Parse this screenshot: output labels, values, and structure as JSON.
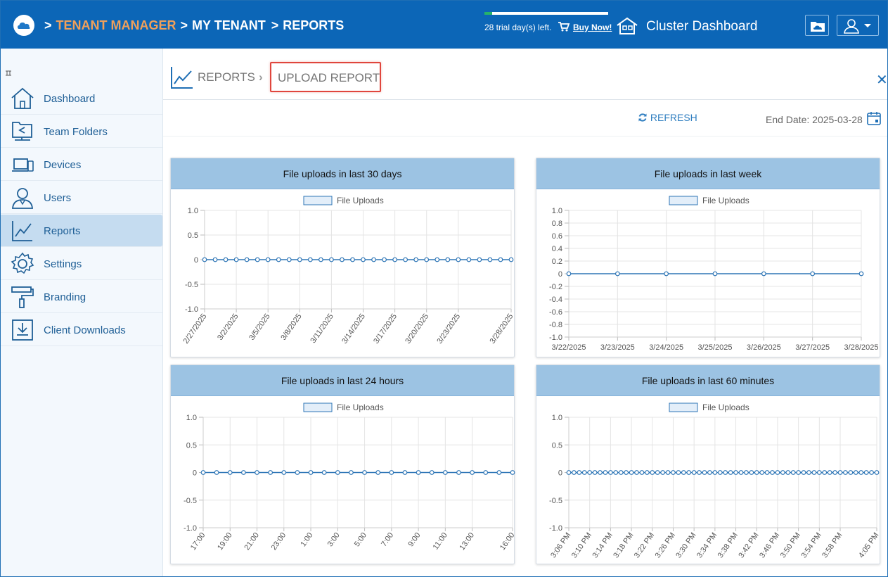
{
  "topbar": {
    "breadcrumb": [
      ">",
      "TENANT MANAGER",
      ">",
      "MY TENANT",
      ">",
      "REPORTS"
    ],
    "trial_progress": 0.06,
    "trial_text": "28 trial day(s) left.",
    "buy_now": "Buy Now!",
    "cluster_dashboard": "Cluster Dashboard",
    "icons": [
      "cloud-logo-icon",
      "cart-icon",
      "house-icon",
      "cloud-folder-icon",
      "user-icon",
      "caret-down-icon"
    ]
  },
  "sidebar": {
    "collapse_icon": "collapse-icon",
    "items": [
      {
        "label": "Dashboard",
        "icon": "home-icon"
      },
      {
        "label": "Team Folders",
        "icon": "share-folder-icon"
      },
      {
        "label": "Devices",
        "icon": "devices-icon"
      },
      {
        "label": "Users",
        "icon": "user-icon"
      },
      {
        "label": "Reports",
        "icon": "chart-icon",
        "active": true
      },
      {
        "label": "Settings",
        "icon": "gear-icon"
      },
      {
        "label": "Branding",
        "icon": "paint-roller-icon"
      },
      {
        "label": "Client Downloads",
        "icon": "download-icon"
      }
    ]
  },
  "header": {
    "reports": "REPORTS",
    "upload_report": "UPLOAD REPORT",
    "refresh": "REFRESH",
    "end_date": "End Date: 2025-03-28"
  },
  "colors": {
    "accent": "#0c66b7",
    "tenant_manager": "#f0a05a",
    "panel_header": "#9cc3e3",
    "highlight": "#e0463d",
    "series": "#2f76b6"
  },
  "chart_data": [
    {
      "type": "line",
      "title": "File uploads in last 30 days",
      "legend": "File Uploads",
      "legend_position": "top",
      "grid": true,
      "ylim": [
        -1,
        1
      ],
      "yticks": [
        "1.0",
        "0.5",
        "0",
        "-0.5",
        "-1.0"
      ],
      "tick_labels": [
        "2/27/2025",
        "3/2/2025",
        "3/5/2025",
        "3/8/2025",
        "3/11/2025",
        "3/14/2025",
        "3/17/2025",
        "3/20/2025",
        "3/23/2025",
        "3/28/2025"
      ],
      "x": [
        "2/27/2025",
        "2/28/2025",
        "3/1/2025",
        "3/2/2025",
        "3/3/2025",
        "3/4/2025",
        "3/5/2025",
        "3/6/2025",
        "3/7/2025",
        "3/8/2025",
        "3/9/2025",
        "3/10/2025",
        "3/11/2025",
        "3/12/2025",
        "3/13/2025",
        "3/14/2025",
        "3/15/2025",
        "3/16/2025",
        "3/17/2025",
        "3/18/2025",
        "3/19/2025",
        "3/20/2025",
        "3/21/2025",
        "3/22/2025",
        "3/23/2025",
        "3/24/2025",
        "3/25/2025",
        "3/26/2025",
        "3/27/2025",
        "3/28/2025"
      ],
      "series": [
        {
          "name": "File Uploads",
          "values": [
            0,
            0,
            0,
            0,
            0,
            0,
            0,
            0,
            0,
            0,
            0,
            0,
            0,
            0,
            0,
            0,
            0,
            0,
            0,
            0,
            0,
            0,
            0,
            0,
            0,
            0,
            0,
            0,
            0,
            0
          ]
        }
      ]
    },
    {
      "type": "line",
      "title": "File uploads in last week",
      "legend": "File Uploads",
      "legend_position": "top",
      "grid": true,
      "ylim": [
        -1,
        1
      ],
      "yticks": [
        "1.0",
        "0.8",
        "0.6",
        "0.4",
        "0.2",
        "0",
        "-0.2",
        "-0.4",
        "-0.6",
        "-0.8",
        "-1.0"
      ],
      "tick_labels": [
        "3/22/2025",
        "3/23/2025",
        "3/24/2025",
        "3/25/2025",
        "3/26/2025",
        "3/27/2025",
        "3/28/2025"
      ],
      "x": [
        "3/22/2025",
        "3/23/2025",
        "3/24/2025",
        "3/25/2025",
        "3/26/2025",
        "3/27/2025",
        "3/28/2025"
      ],
      "series": [
        {
          "name": "File Uploads",
          "values": [
            0,
            0,
            0,
            0,
            0,
            0,
            0
          ]
        }
      ]
    },
    {
      "type": "line",
      "title": "File uploads in last 24 hours",
      "legend": "File Uploads",
      "legend_position": "top",
      "grid": true,
      "ylim": [
        -1,
        1
      ],
      "yticks": [
        "1.0",
        "0.5",
        "0",
        "-0.5",
        "-1.0"
      ],
      "tick_labels": [
        "17:00",
        "19:00",
        "21:00",
        "23:00",
        "1:00",
        "3:00",
        "5:00",
        "7:00",
        "9:00",
        "11:00",
        "13:00",
        "16:00"
      ],
      "x": [
        "17:00",
        "18:00",
        "19:00",
        "20:00",
        "21:00",
        "22:00",
        "23:00",
        "0:00",
        "1:00",
        "2:00",
        "3:00",
        "4:00",
        "5:00",
        "6:00",
        "7:00",
        "8:00",
        "9:00",
        "10:00",
        "11:00",
        "12:00",
        "13:00",
        "14:00",
        "15:00",
        "16:00"
      ],
      "series": [
        {
          "name": "File Uploads",
          "values": [
            0,
            0,
            0,
            0,
            0,
            0,
            0,
            0,
            0,
            0,
            0,
            0,
            0,
            0,
            0,
            0,
            0,
            0,
            0,
            0,
            0,
            0,
            0,
            0
          ]
        }
      ]
    },
    {
      "type": "line",
      "title": "File uploads in last 60 minutes",
      "legend": "File Uploads",
      "legend_position": "top",
      "grid": true,
      "ylim": [
        -1,
        1
      ],
      "yticks": [
        "1.0",
        "0.5",
        "0",
        "-0.5",
        "-1.0"
      ],
      "tick_labels": [
        "3:06 PM",
        "3:10 PM",
        "3:14 PM",
        "3:18 PM",
        "3:22 PM",
        "3:26 PM",
        "3:30 PM",
        "3:34 PM",
        "3:38 PM",
        "3:42 PM",
        "3:46 PM",
        "3:50 PM",
        "3:54 PM",
        "3:58 PM",
        "4:05 PM"
      ],
      "x": [
        "3:06 PM",
        "3:07 PM",
        "3:08 PM",
        "3:09 PM",
        "3:10 PM",
        "3:11 PM",
        "3:12 PM",
        "3:13 PM",
        "3:14 PM",
        "3:15 PM",
        "3:16 PM",
        "3:17 PM",
        "3:18 PM",
        "3:19 PM",
        "3:20 PM",
        "3:21 PM",
        "3:22 PM",
        "3:23 PM",
        "3:24 PM",
        "3:25 PM",
        "3:26 PM",
        "3:27 PM",
        "3:28 PM",
        "3:29 PM",
        "3:30 PM",
        "3:31 PM",
        "3:32 PM",
        "3:33 PM",
        "3:34 PM",
        "3:35 PM",
        "3:36 PM",
        "3:37 PM",
        "3:38 PM",
        "3:39 PM",
        "3:40 PM",
        "3:41 PM",
        "3:42 PM",
        "3:43 PM",
        "3:44 PM",
        "3:45 PM",
        "3:46 PM",
        "3:47 PM",
        "3:48 PM",
        "3:49 PM",
        "3:50 PM",
        "3:51 PM",
        "3:52 PM",
        "3:53 PM",
        "3:54 PM",
        "3:55 PM",
        "3:56 PM",
        "3:57 PM",
        "3:58 PM",
        "3:59 PM",
        "4:00 PM",
        "4:01 PM",
        "4:02 PM",
        "4:03 PM",
        "4:04 PM",
        "4:05 PM"
      ],
      "series": [
        {
          "name": "File Uploads",
          "values": [
            0,
            0,
            0,
            0,
            0,
            0,
            0,
            0,
            0,
            0,
            0,
            0,
            0,
            0,
            0,
            0,
            0,
            0,
            0,
            0,
            0,
            0,
            0,
            0,
            0,
            0,
            0,
            0,
            0,
            0,
            0,
            0,
            0,
            0,
            0,
            0,
            0,
            0,
            0,
            0,
            0,
            0,
            0,
            0,
            0,
            0,
            0,
            0,
            0,
            0,
            0,
            0,
            0,
            0,
            0,
            0,
            0,
            0,
            0,
            0
          ]
        }
      ]
    }
  ]
}
